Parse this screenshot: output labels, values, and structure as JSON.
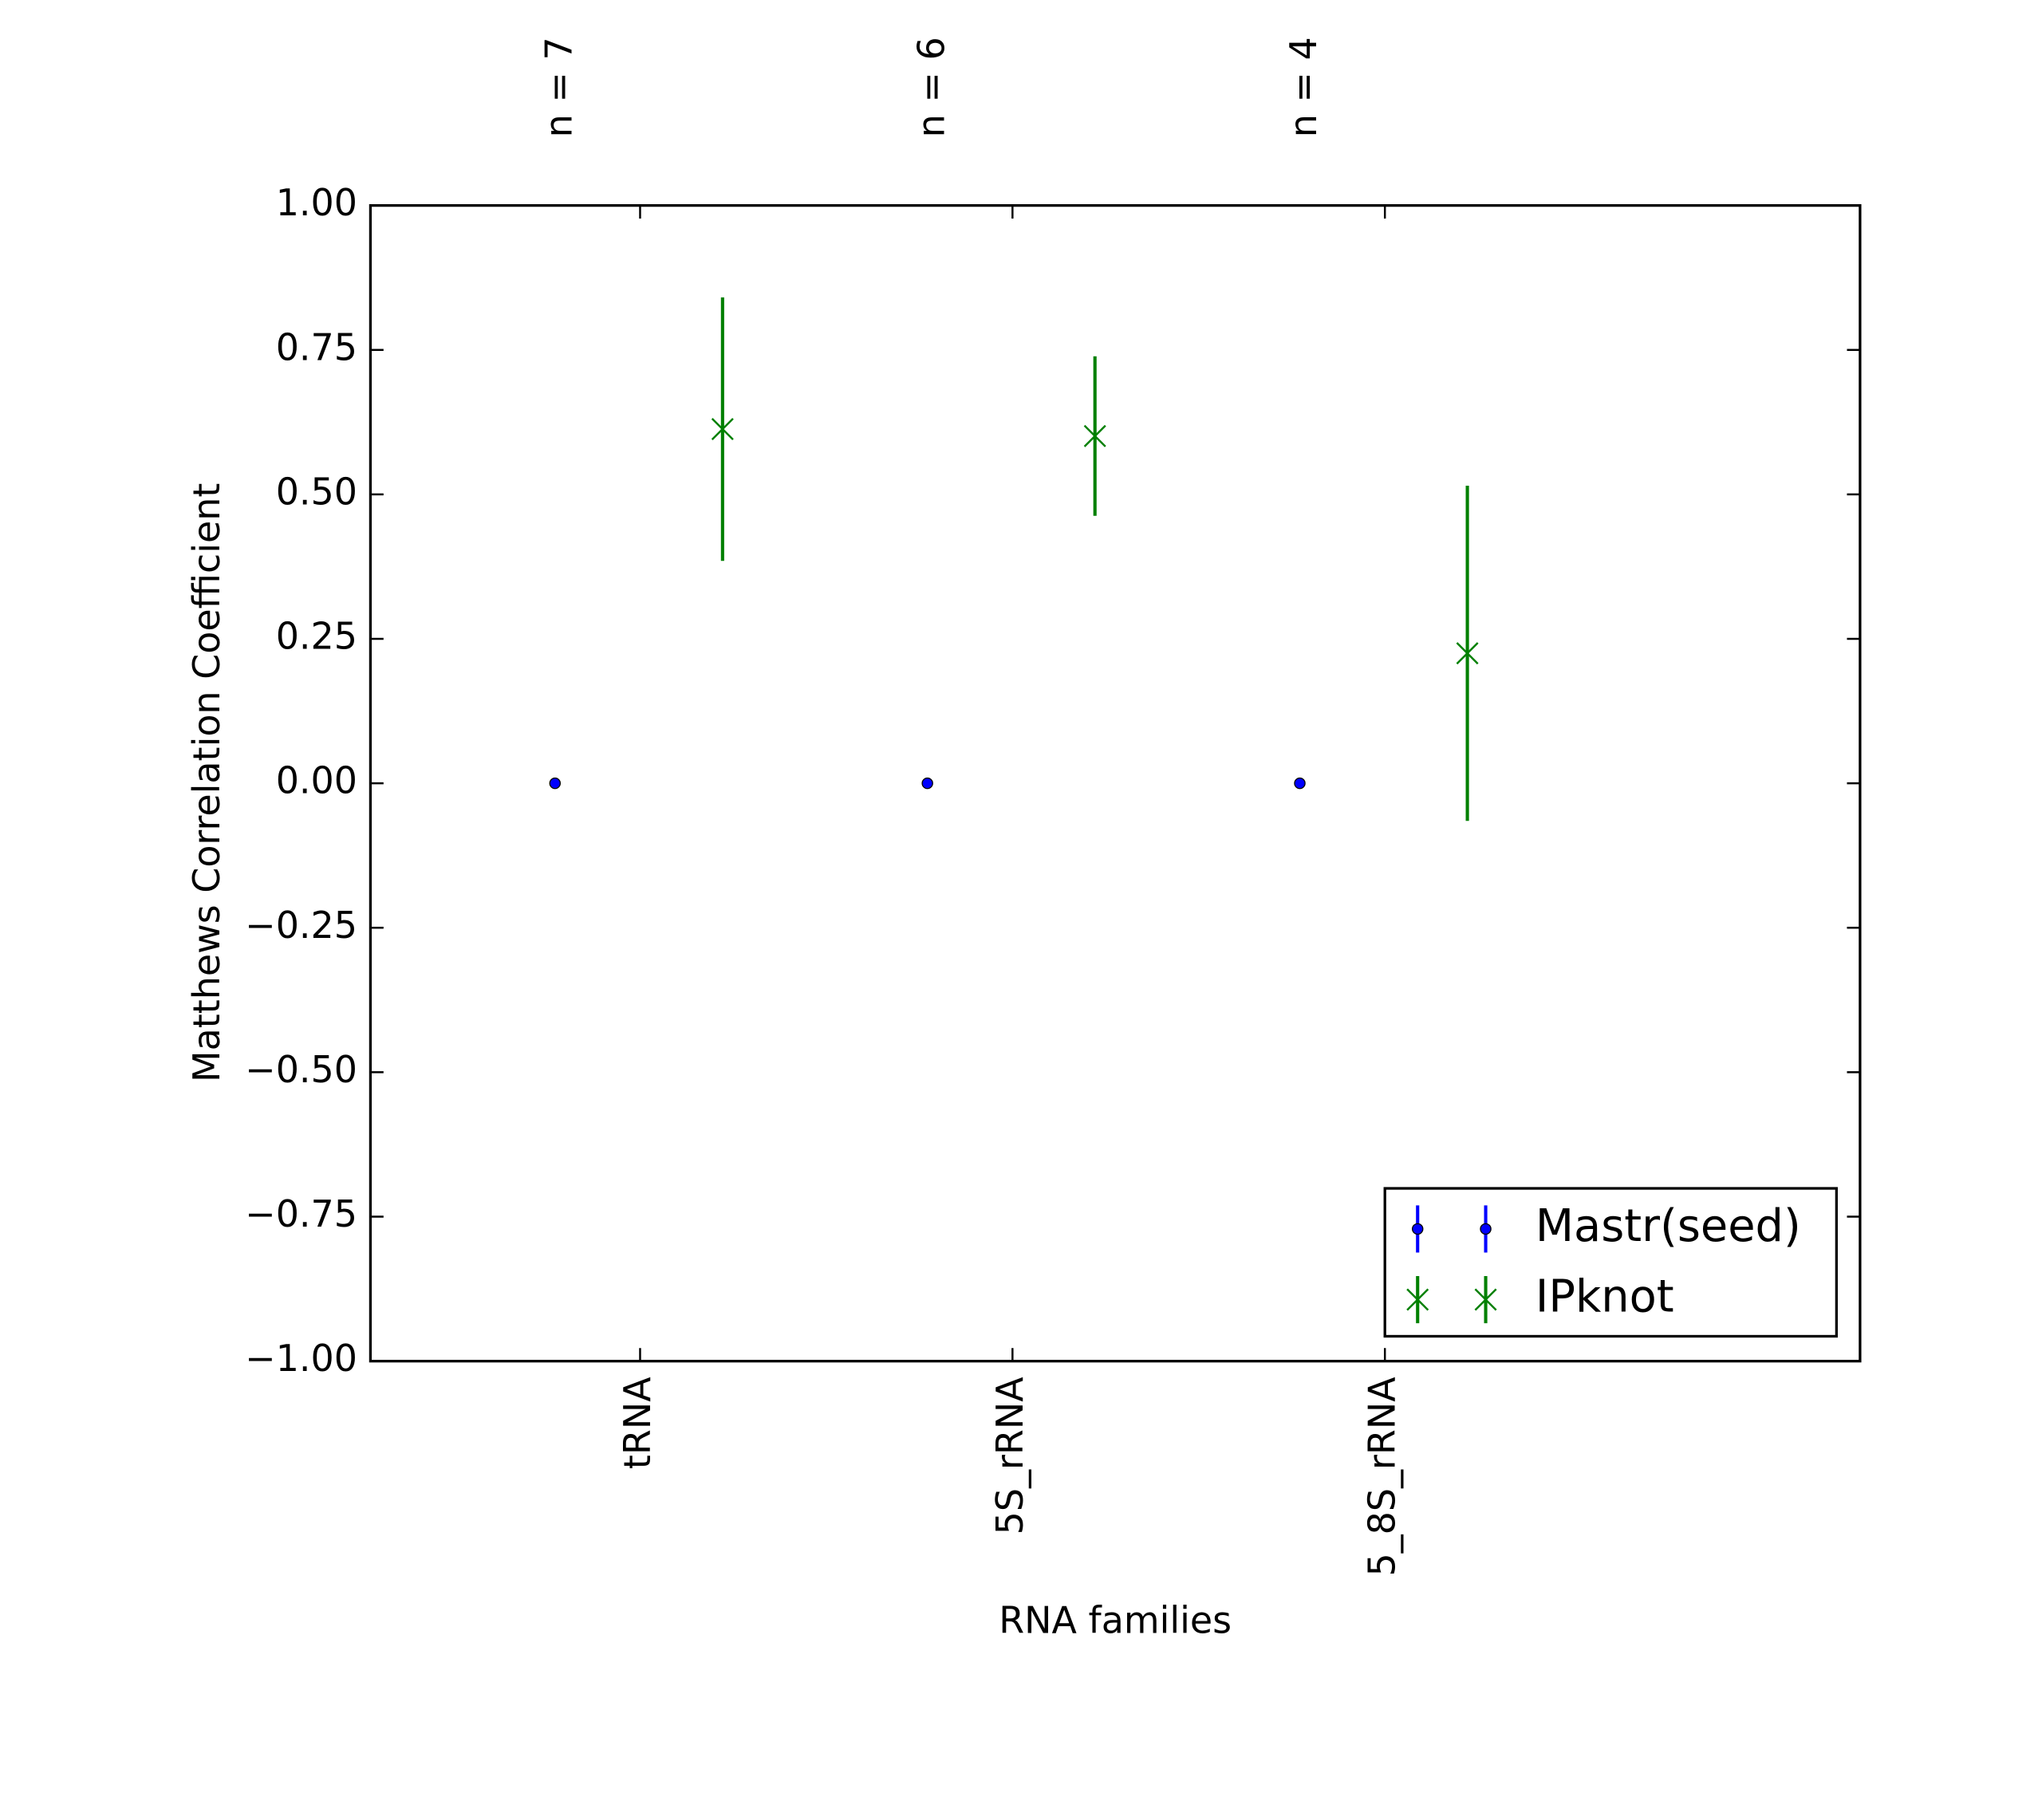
{
  "chart_data": {
    "type": "errorbar",
    "xlabel": "RNA families",
    "ylabel": "Matthews Correlation Coefficient",
    "categories": [
      "tRNA",
      "5S_rRNA",
      "5_8S_rRNA"
    ],
    "annotations": [
      "n = 7",
      "n = 6",
      "n = 4"
    ],
    "series": [
      {
        "name": "Mastr(seed)",
        "color": "#0000ff",
        "marker": "dot",
        "values": [
          0,
          0,
          0
        ],
        "errors": [
          0,
          0,
          0
        ]
      },
      {
        "name": "IPknot",
        "color": "#008000",
        "marker": "x",
        "values": [
          0.613,
          0.601,
          0.225
        ],
        "errors": [
          0.228,
          0.138,
          0.29
        ]
      }
    ],
    "ylim": [
      -1,
      1
    ],
    "yticks": [
      {
        "value": -1,
        "label": "−1.00"
      },
      {
        "value": -0.75,
        "label": "−0.75"
      },
      {
        "value": -0.5,
        "label": "−0.50"
      },
      {
        "value": -0.25,
        "label": "−0.25"
      },
      {
        "value": 0,
        "label": "0.00"
      },
      {
        "value": 0.25,
        "label": "0.25"
      },
      {
        "value": 0.5,
        "label": "0.50"
      },
      {
        "value": 0.75,
        "label": "0.75"
      },
      {
        "value": 1,
        "label": "1.00"
      }
    ],
    "legend": "lower right"
  }
}
